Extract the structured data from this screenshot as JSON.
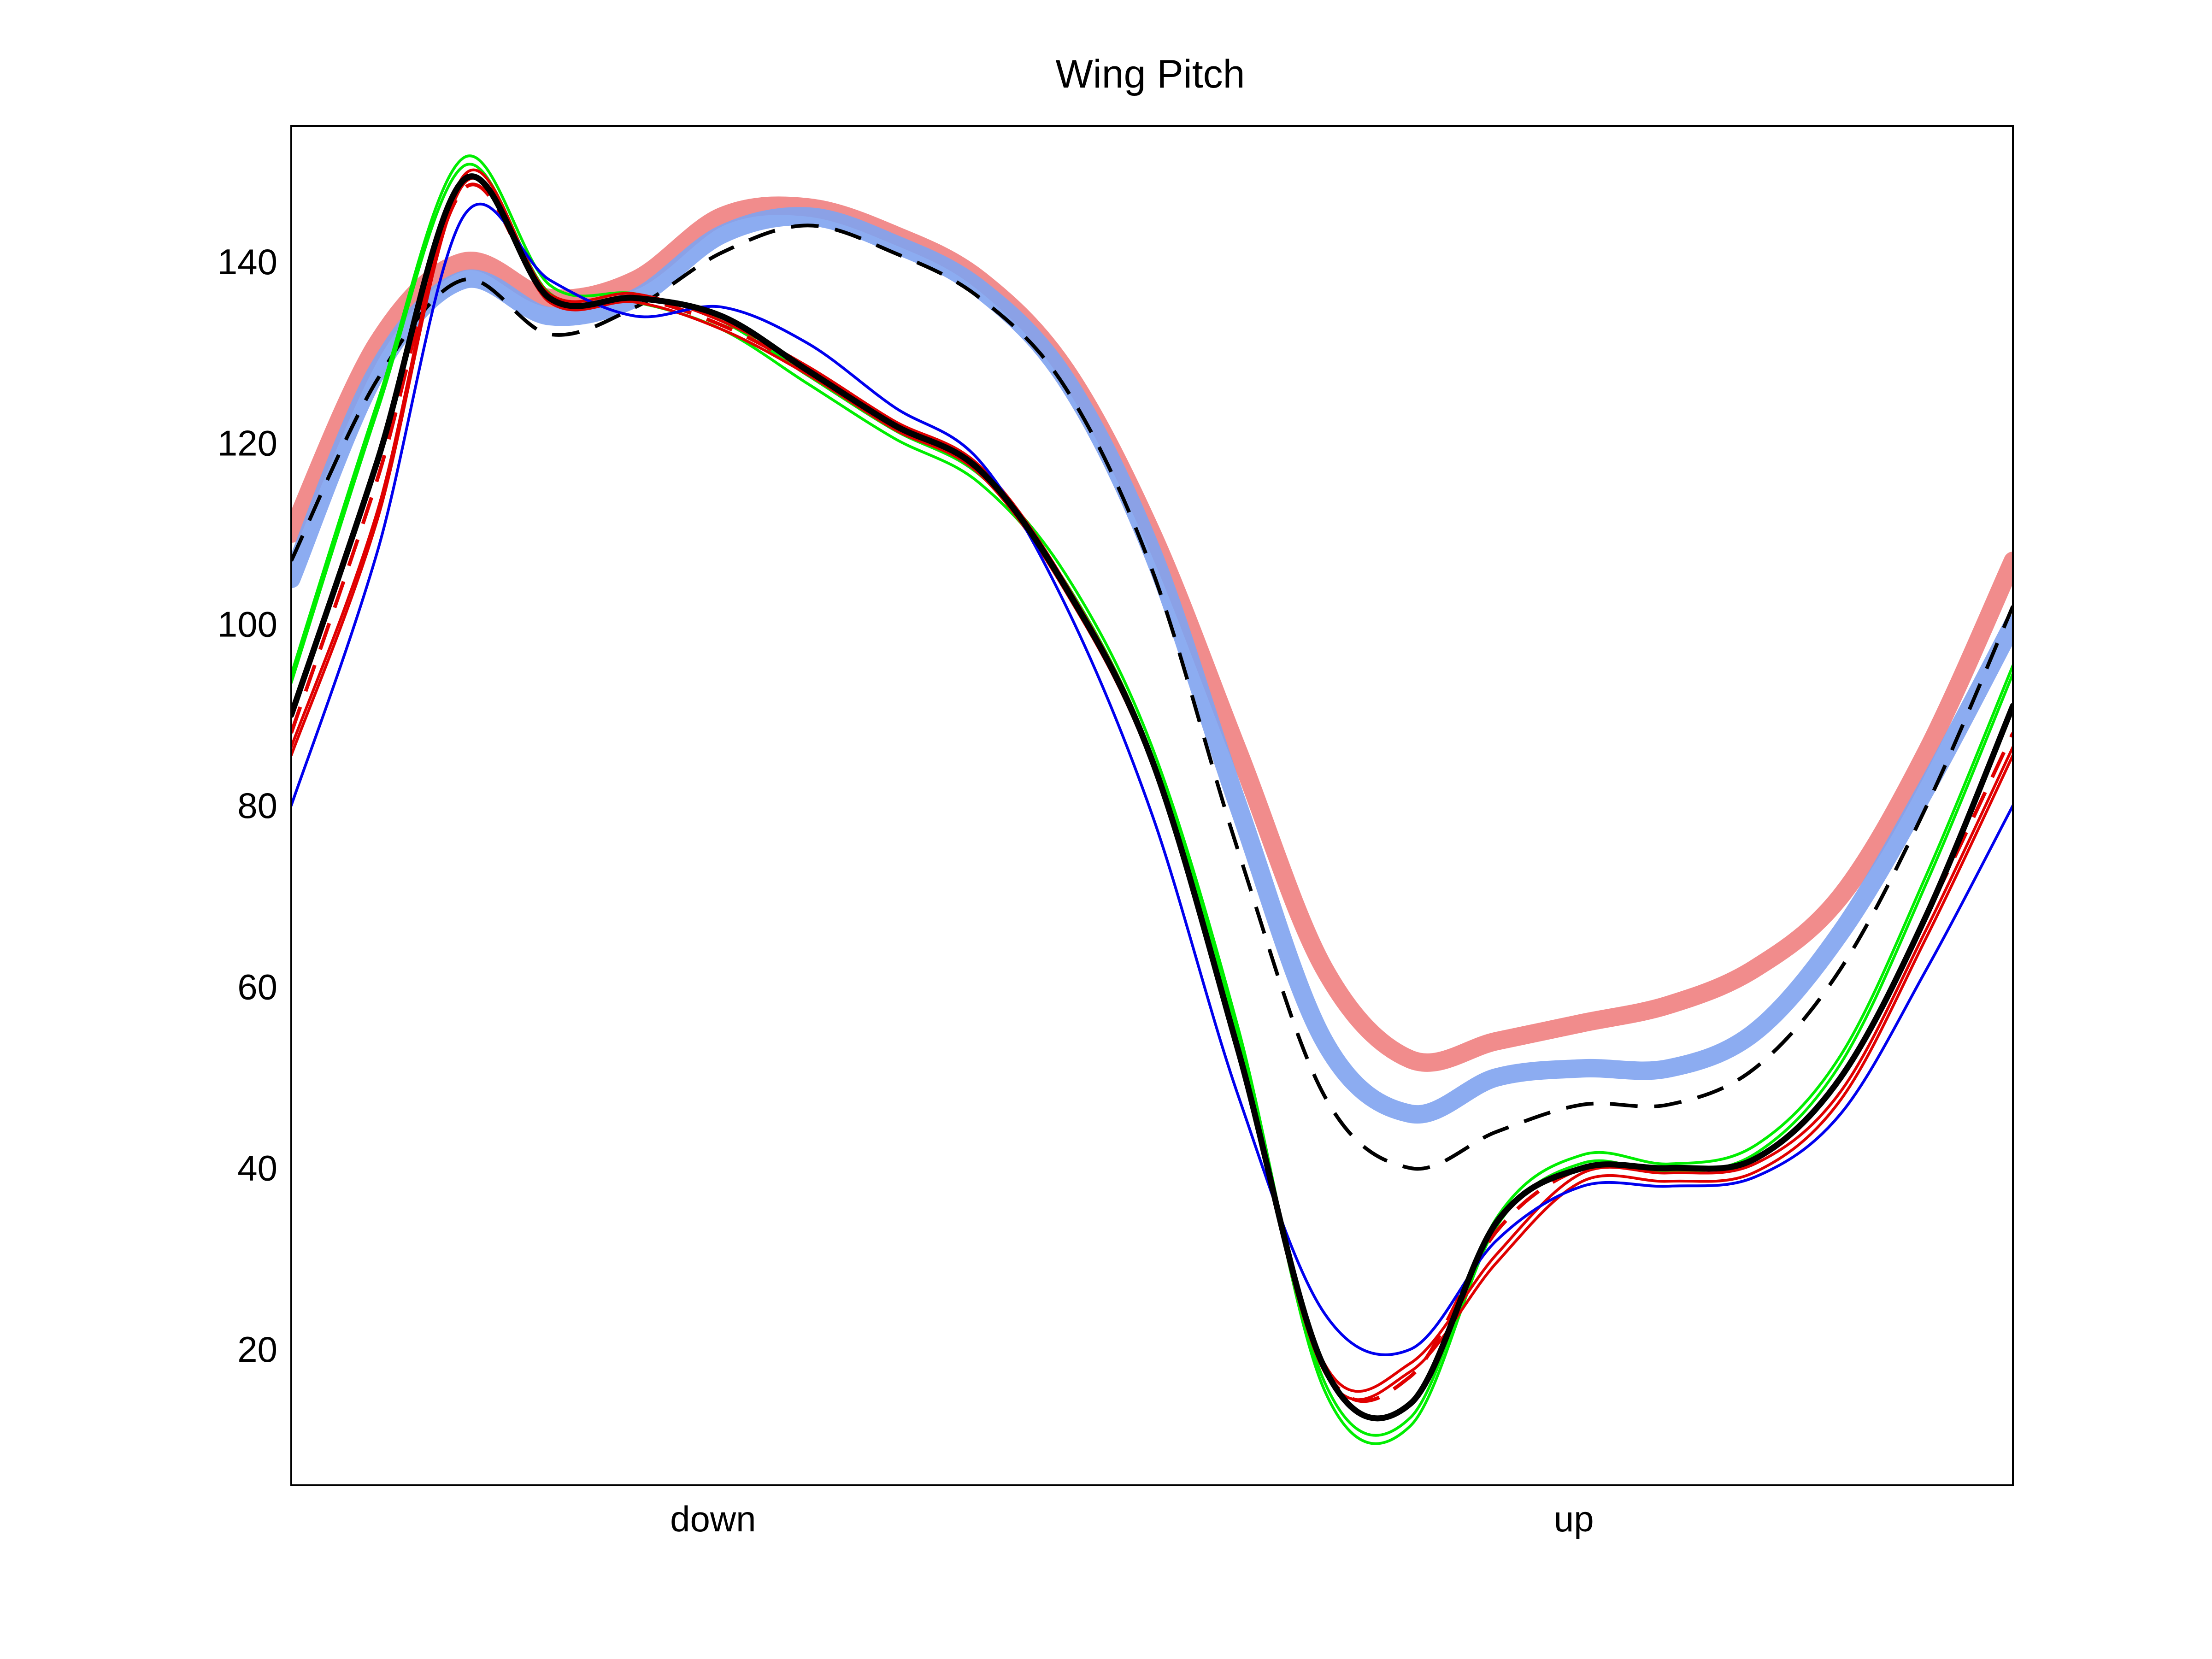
{
  "chart_data": {
    "type": "line",
    "title": "Wing Pitch",
    "xlabel": "",
    "ylabel": "",
    "x_tick_labels": [
      "down",
      "up"
    ],
    "x_tick_positions": [
      0.245,
      0.745
    ],
    "xlim": [
      0,
      1
    ],
    "ylim": [
      5,
      155
    ],
    "yticks": [
      20,
      40,
      60,
      80,
      100,
      120,
      140
    ],
    "grid": false,
    "legend": "none",
    "x": [
      0.0,
      0.05,
      0.1,
      0.15,
      0.2,
      0.25,
      0.3,
      0.35,
      0.4,
      0.45,
      0.5,
      0.55,
      0.6,
      0.65,
      0.7,
      0.75,
      0.8,
      0.85,
      0.9,
      0.95,
      1.0
    ],
    "series": [
      {
        "name": "red band",
        "color": "#f08080",
        "width": "band",
        "dash": "solid",
        "values": [
          110,
          131,
          140,
          136,
          138,
          145,
          146,
          143,
          138,
          128,
          110,
          86,
          62,
          52,
          54,
          56,
          58,
          62,
          70,
          86,
          107
        ]
      },
      {
        "name": "blue band",
        "color": "#7fa3f0",
        "width": "band",
        "dash": "solid",
        "values": [
          105,
          128,
          138,
          134,
          136,
          143,
          145,
          142,
          137,
          127,
          108,
          80,
          54,
          46,
          50,
          51,
          51,
          55,
          66,
          82,
          100
        ]
      },
      {
        "name": "black dashed",
        "color": "#000000",
        "width": "medium",
        "dash": "dashed",
        "values": [
          107,
          127,
          138,
          132,
          135,
          141,
          144,
          141,
          136,
          126,
          106,
          75,
          48,
          40,
          44,
          47,
          47,
          51,
          62,
          80,
          102
        ]
      },
      {
        "name": "green",
        "color": "#00ee00",
        "width": "double",
        "dash": "solid",
        "values": [
          94,
          124,
          151,
          137,
          136,
          133,
          127,
          121,
          116,
          105,
          86,
          55,
          16,
          12,
          34,
          41,
          40,
          42,
          52,
          72,
          95
        ]
      },
      {
        "name": "red",
        "color": "#e00000",
        "width": "double",
        "dash": "solid",
        "values": [
          86,
          112,
          149,
          136,
          136,
          133,
          128,
          122,
          117,
          104,
          85,
          53,
          18,
          18,
          30,
          39,
          39,
          40,
          48,
          66,
          86
        ]
      },
      {
        "name": "red dashed",
        "color": "#e00000",
        "width": "medium",
        "dash": "dashed",
        "values": [
          88,
          116,
          148,
          136,
          136,
          133,
          128,
          122,
          117,
          104,
          85,
          53,
          18,
          17,
          33,
          40,
          40,
          41,
          50,
          68,
          88
        ]
      },
      {
        "name": "blue",
        "color": "#0000ee",
        "width": "thin",
        "dash": "solid",
        "values": [
          80,
          108,
          145,
          138,
          134,
          135,
          131,
          124,
          118,
          102,
          79,
          48,
          24,
          20,
          32,
          38,
          38,
          39,
          46,
          62,
          80
        ]
      },
      {
        "name": "black",
        "color": "#000000",
        "width": "thick",
        "dash": "solid",
        "values": [
          90,
          118,
          149,
          136,
          136,
          134,
          128,
          122,
          117,
          104,
          85,
          53,
          18,
          14,
          34,
          40,
          40,
          41,
          50,
          68,
          91
        ]
      }
    ]
  }
}
